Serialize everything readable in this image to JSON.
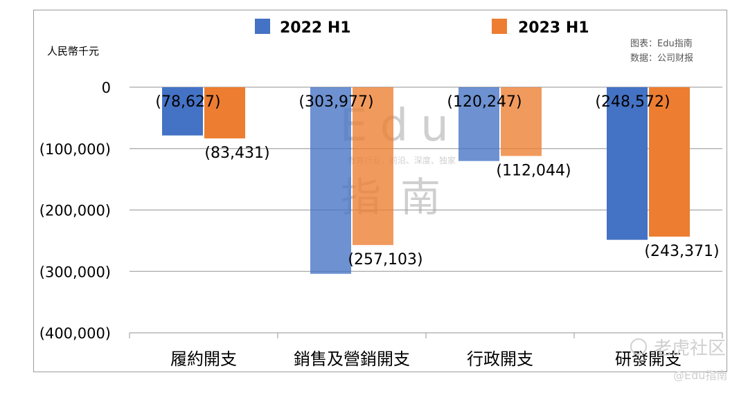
{
  "chart_data": {
    "type": "bar",
    "unit_label": "人民幣千元",
    "categories": [
      "履約開支",
      "銷售及營銷開支",
      "行政開支",
      "研發開支"
    ],
    "series": [
      {
        "name": "2022 H1",
        "color": "#4472c4",
        "values": [
          -78627,
          -303977,
          -120247,
          -248572
        ],
        "labels": [
          "(78,627)",
          "(303,977)",
          "(120,247)",
          "(248,572)"
        ]
      },
      {
        "name": "2023 H1",
        "color": "#ed7d31",
        "values": [
          -83431,
          -257103,
          -112044,
          -243371
        ],
        "labels": [
          "(83,431)",
          "(257,103)",
          "(112,044)",
          "(243,371)"
        ]
      }
    ],
    "ylim": [
      -400000,
      0
    ],
    "yticks": [
      0,
      -100000,
      -200000,
      -300000,
      -400000
    ],
    "ytick_labels": [
      "0",
      "(100,000)",
      "(200,000)",
      "(300,000)",
      "(400,000)"
    ],
    "grid": true,
    "legend_position": "top"
  },
  "credits": {
    "chart_by": "图表：Edu指南",
    "source": "数据：公司财报"
  },
  "watermarks": {
    "center_logo": "Edu",
    "center_slogan": "教育行业，前沿、深度、独家",
    "center_name": "指南",
    "corner_top": "老虎社区",
    "corner_bottom": "@Edu指南"
  }
}
